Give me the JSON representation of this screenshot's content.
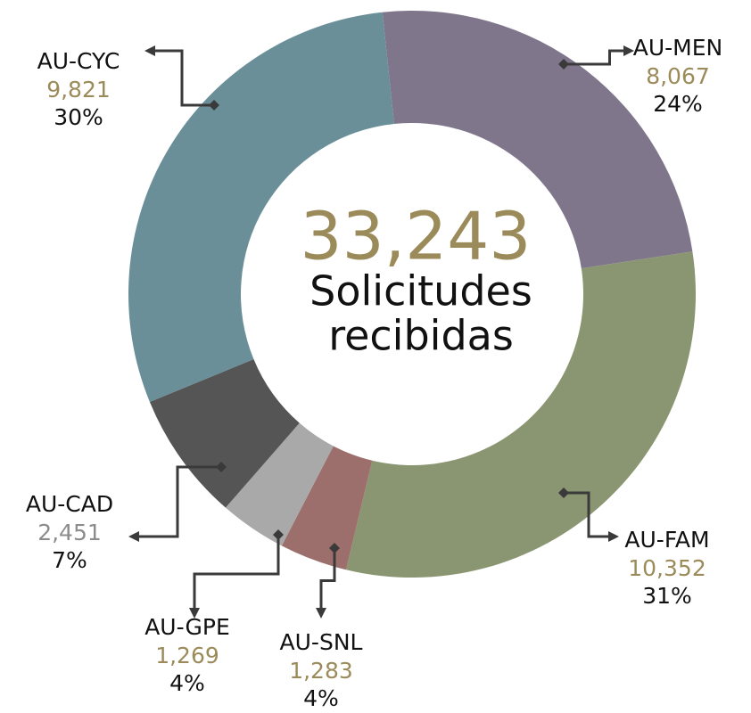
{
  "chart_data": {
    "type": "donut",
    "categories": [
      "AU-MEN",
      "AU-FAM",
      "AU-SNL",
      "AU-GPE",
      "AU-CAD",
      "AU-CYC"
    ],
    "values": [
      8067,
      10352,
      1283,
      1269,
      2451,
      9821
    ],
    "value_labels": [
      "8,067",
      "10,352",
      "1,283",
      "1,269",
      "2,451",
      "9,821"
    ],
    "percentages": [
      24,
      31,
      4,
      4,
      7,
      30
    ],
    "percentage_labels": [
      "24%",
      "31%",
      "4%",
      "4%",
      "7%",
      "30%"
    ],
    "colors": [
      "#7f768c",
      "#8a9672",
      "#9c6e6c",
      "#a9a9a9",
      "#555555",
      "#6a8f99"
    ],
    "value_label_colors": [
      "#9c8b5a",
      "#9c8b5a",
      "#9c8b5a",
      "#9c8b5a",
      "#8c8c8c",
      "#9c8b5a"
    ],
    "total": 33243,
    "total_label": "33,243",
    "center_text": [
      "Solicitudes",
      "recibidas"
    ]
  }
}
